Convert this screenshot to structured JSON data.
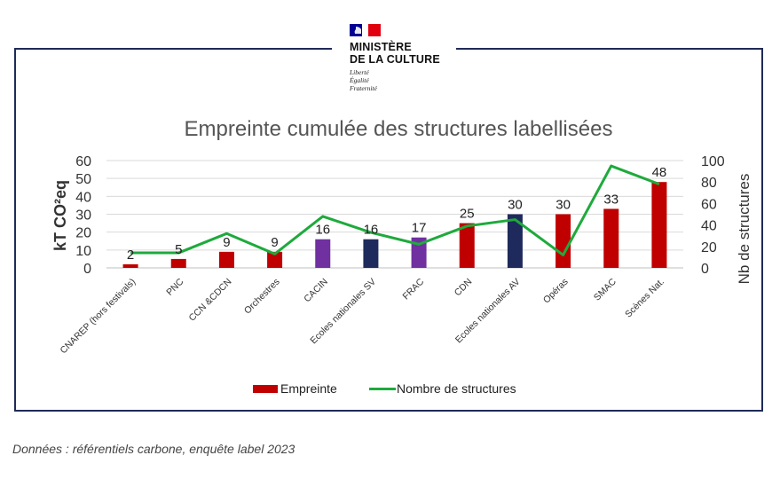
{
  "logo": {
    "line1": "MINISTÈRE",
    "line2": "DE LA CULTURE",
    "motto1": "Liberté",
    "motto2": "Égalité",
    "motto3": "Fraternité",
    "flag_colors": [
      "#000091",
      "#ffffff",
      "#e1000f"
    ]
  },
  "caption": "Données : référentiels carbone, enquête label 2023",
  "chart_data": {
    "type": "bar",
    "title": "Empreinte cumulée des structures labellisées",
    "ylabel": "kT CO²eq",
    "y2label": "Nb de structures",
    "ylim": [
      0,
      60
    ],
    "y2lim": [
      0,
      100
    ],
    "yticks": [
      0,
      10,
      20,
      30,
      40,
      50,
      60
    ],
    "y2ticks": [
      0,
      20,
      40,
      60,
      80,
      100
    ],
    "grid": true,
    "legend_position": "bottom",
    "categories": [
      "CNAREP (hors festivals)",
      "PNC",
      "CCN &CDCN",
      "Orchestres",
      "CACIN",
      "Ecoles nationales SV",
      "FRAC",
      "CDN",
      "Ecoles nationales AV",
      "Opéras",
      "SMAC",
      "Scènes Nat."
    ],
    "series": [
      {
        "name": "Empreinte",
        "kind": "bar",
        "values": [
          2,
          5,
          9,
          9,
          16,
          16,
          17,
          25,
          30,
          30,
          33,
          48
        ],
        "labels": [
          "2",
          "5",
          "9",
          "9",
          "16",
          "16",
          "17",
          "25",
          "30",
          "30",
          "33",
          "48"
        ],
        "colors": [
          "#c00000",
          "#c00000",
          "#c00000",
          "#c00000",
          "#7030a0",
          "#1f2a5c",
          "#7030a0",
          "#c00000",
          "#1f2a5c",
          "#c00000",
          "#c00000",
          "#c00000"
        ],
        "legend_color": "#c00000"
      },
      {
        "name": "Nombre de structures",
        "kind": "line",
        "axis": "right",
        "values": [
          14,
          14,
          32,
          13,
          48,
          33,
          22,
          39,
          45,
          12,
          95,
          78
        ],
        "color": "#1eaa3c"
      }
    ]
  }
}
